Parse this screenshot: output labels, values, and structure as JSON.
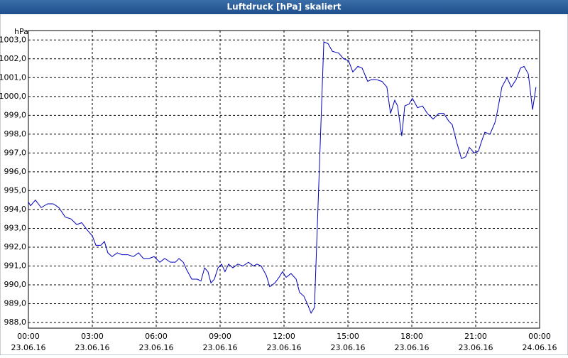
{
  "chart_data": {
    "type": "line",
    "title": "Luftdruck [hPa] skaliert",
    "y_unit": "hPa",
    "xlim": [
      0,
      24
    ],
    "ylim": [
      987.7,
      1003.5
    ],
    "grid": true,
    "xticks": [
      {
        "value": 0,
        "label": "00:00"
      },
      {
        "value": 3,
        "label": "03:00"
      },
      {
        "value": 6,
        "label": "06:00"
      },
      {
        "value": 9,
        "label": "09:00"
      },
      {
        "value": 12,
        "label": "12:00"
      },
      {
        "value": 15,
        "label": "15:00"
      },
      {
        "value": 18,
        "label": "18:00"
      },
      {
        "value": 21,
        "label": "21:00"
      },
      {
        "value": 24,
        "label": "00:00"
      }
    ],
    "xtick_dates": [
      "23.06.16",
      "23.06.16",
      "23.06.16",
      "23.06.16",
      "23.06.16",
      "23.06.16",
      "23.06.16",
      "23.06.16",
      "24.06.16"
    ],
    "yticks": [
      {
        "value": 988,
        "label": "988,0"
      },
      {
        "value": 989,
        "label": "989,0"
      },
      {
        "value": 990,
        "label": "990,0"
      },
      {
        "value": 991,
        "label": "991,0"
      },
      {
        "value": 992,
        "label": "992,0"
      },
      {
        "value": 993,
        "label": "993,0"
      },
      {
        "value": 994,
        "label": "994,0"
      },
      {
        "value": 995,
        "label": "995,0"
      },
      {
        "value": 996,
        "label": "996,0"
      },
      {
        "value": 997,
        "label": "997,0"
      },
      {
        "value": 998,
        "label": "998,0"
      },
      {
        "value": 999,
        "label": "999,0"
      },
      {
        "value": 1000,
        "label": "1000,0"
      },
      {
        "value": 1001,
        "label": "1001,0"
      },
      {
        "value": 1002,
        "label": "1002,0"
      },
      {
        "value": 1003,
        "label": "1003,0"
      }
    ],
    "x": [
      0,
      0.1,
      0.33,
      0.6,
      0.9,
      1.17,
      1.43,
      1.73,
      2.0,
      2.27,
      2.5,
      2.77,
      3.0,
      3.17,
      3.4,
      3.57,
      3.73,
      3.93,
      4.17,
      4.4,
      4.67,
      4.93,
      5.17,
      5.4,
      5.67,
      5.9,
      6.17,
      6.4,
      6.67,
      6.9,
      7.07,
      7.27,
      7.43,
      7.67,
      7.93,
      8.1,
      8.27,
      8.43,
      8.57,
      8.73,
      8.9,
      9.07,
      9.23,
      9.4,
      9.6,
      9.83,
      10.07,
      10.33,
      10.57,
      10.73,
      10.93,
      11.17,
      11.33,
      11.57,
      11.77,
      11.93,
      12.1,
      12.33,
      12.57,
      12.73,
      12.93,
      13.13,
      13.27,
      13.43,
      13.67,
      13.87,
      14.07,
      14.27,
      14.57,
      14.8,
      15.03,
      15.23,
      15.47,
      15.67,
      15.93,
      16.1,
      16.33,
      16.6,
      16.83,
      17.0,
      17.2,
      17.33,
      17.53,
      17.67,
      17.87,
      18.03,
      18.27,
      18.5,
      18.73,
      19.0,
      19.27,
      19.5,
      19.73,
      19.9,
      20.1,
      20.33,
      20.53,
      20.7,
      20.93,
      21.13,
      21.27,
      21.43,
      21.67,
      21.9,
      22.0,
      22.23,
      22.47,
      22.67,
      22.9,
      23.1,
      23.27,
      23.47,
      23.67,
      23.83
    ],
    "series": [
      {
        "name": "Luftdruck",
        "color": "#0000c0",
        "values": [
          994.4,
          994.2,
          994.5,
          994.1,
          994.3,
          994.3,
          994.1,
          993.6,
          993.5,
          993.2,
          993.3,
          992.9,
          992.6,
          992.1,
          992.1,
          992.3,
          991.7,
          991.5,
          991.7,
          991.6,
          991.6,
          991.5,
          991.7,
          991.4,
          991.4,
          991.5,
          991.2,
          991.4,
          991.2,
          991.2,
          991.4,
          991.2,
          990.8,
          990.3,
          990.3,
          990.2,
          990.9,
          990.7,
          990.1,
          990.3,
          990.9,
          991.1,
          990.7,
          991.1,
          990.9,
          991.1,
          991.0,
          991.2,
          991.0,
          991.1,
          991.0,
          990.5,
          989.9,
          990.1,
          990.4,
          990.7,
          990.4,
          990.6,
          990.3,
          989.6,
          989.4,
          988.9,
          988.5,
          988.8,
          996.5,
          1002.9,
          1002.8,
          1002.4,
          1002.3,
          1002.0,
          1001.9,
          1001.3,
          1001.6,
          1001.5,
          1000.8,
          1000.9,
          1000.9,
          1000.8,
          1000.5,
          999.1,
          999.8,
          999.5,
          997.9,
          999.5,
          999.6,
          999.9,
          999.4,
          999.5,
          999.1,
          998.8,
          999.1,
          999.1,
          998.7,
          998.5,
          997.6,
          996.7,
          996.8,
          997.3,
          997.0,
          997.1,
          997.6,
          998.1,
          998.0,
          998.6,
          999.1,
          1000.5,
          1001.0,
          1000.5,
          1000.9,
          1001.5,
          1001.6,
          1001.2,
          999.3,
          1000.5
        ]
      }
    ]
  }
}
